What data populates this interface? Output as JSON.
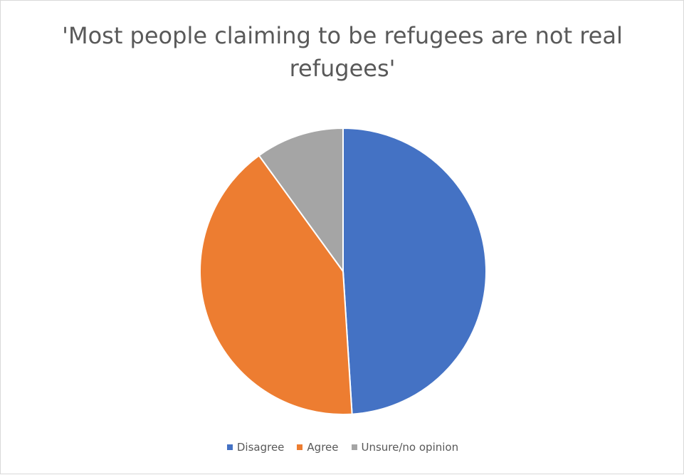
{
  "chart_data": {
    "type": "pie",
    "title": "'Most people claiming to be refugees are not real refugees'",
    "categories": [
      "Disagree",
      "Agree",
      "Unsure/no opinion"
    ],
    "values": [
      49,
      41,
      10
    ],
    "colors": [
      "#4472c4",
      "#ed7d31",
      "#a5a5a5"
    ],
    "legend_position": "bottom"
  }
}
